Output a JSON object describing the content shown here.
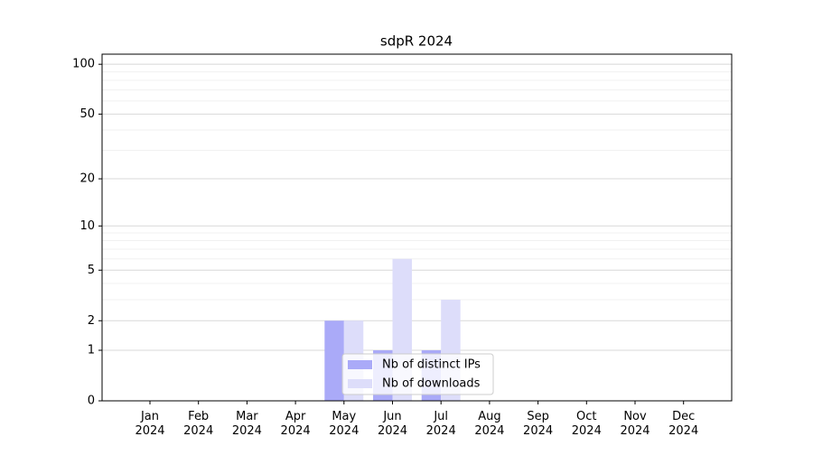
{
  "chart_data": {
    "type": "bar",
    "title": "sdpR 2024",
    "categories": [
      "Jan\n2024",
      "Feb\n2024",
      "Mar\n2024",
      "Apr\n2024",
      "May\n2024",
      "Jun\n2024",
      "Jul\n2024",
      "Aug\n2024",
      "Sep\n2024",
      "Oct\n2024",
      "Nov\n2024",
      "Dec\n2024"
    ],
    "series": [
      {
        "name": "Nb of distinct IPs",
        "color": "#aaaaf8",
        "values": [
          0,
          0,
          0,
          0,
          2,
          1,
          1,
          0,
          0,
          0,
          0,
          0
        ]
      },
      {
        "name": "Nb of downloads",
        "color": "#ddddfa",
        "values": [
          0,
          0,
          0,
          0,
          2,
          6,
          3,
          0,
          0,
          0,
          0,
          0
        ]
      }
    ],
    "yscale": "log1p",
    "ylim": [
      0,
      115
    ],
    "yticks": [
      0,
      1,
      2,
      5,
      10,
      20,
      50,
      100
    ],
    "yminorticks": [
      3,
      4,
      6,
      7,
      8,
      9,
      30,
      40,
      60,
      70,
      80,
      90
    ],
    "grid": true,
    "legend": "lower center"
  }
}
